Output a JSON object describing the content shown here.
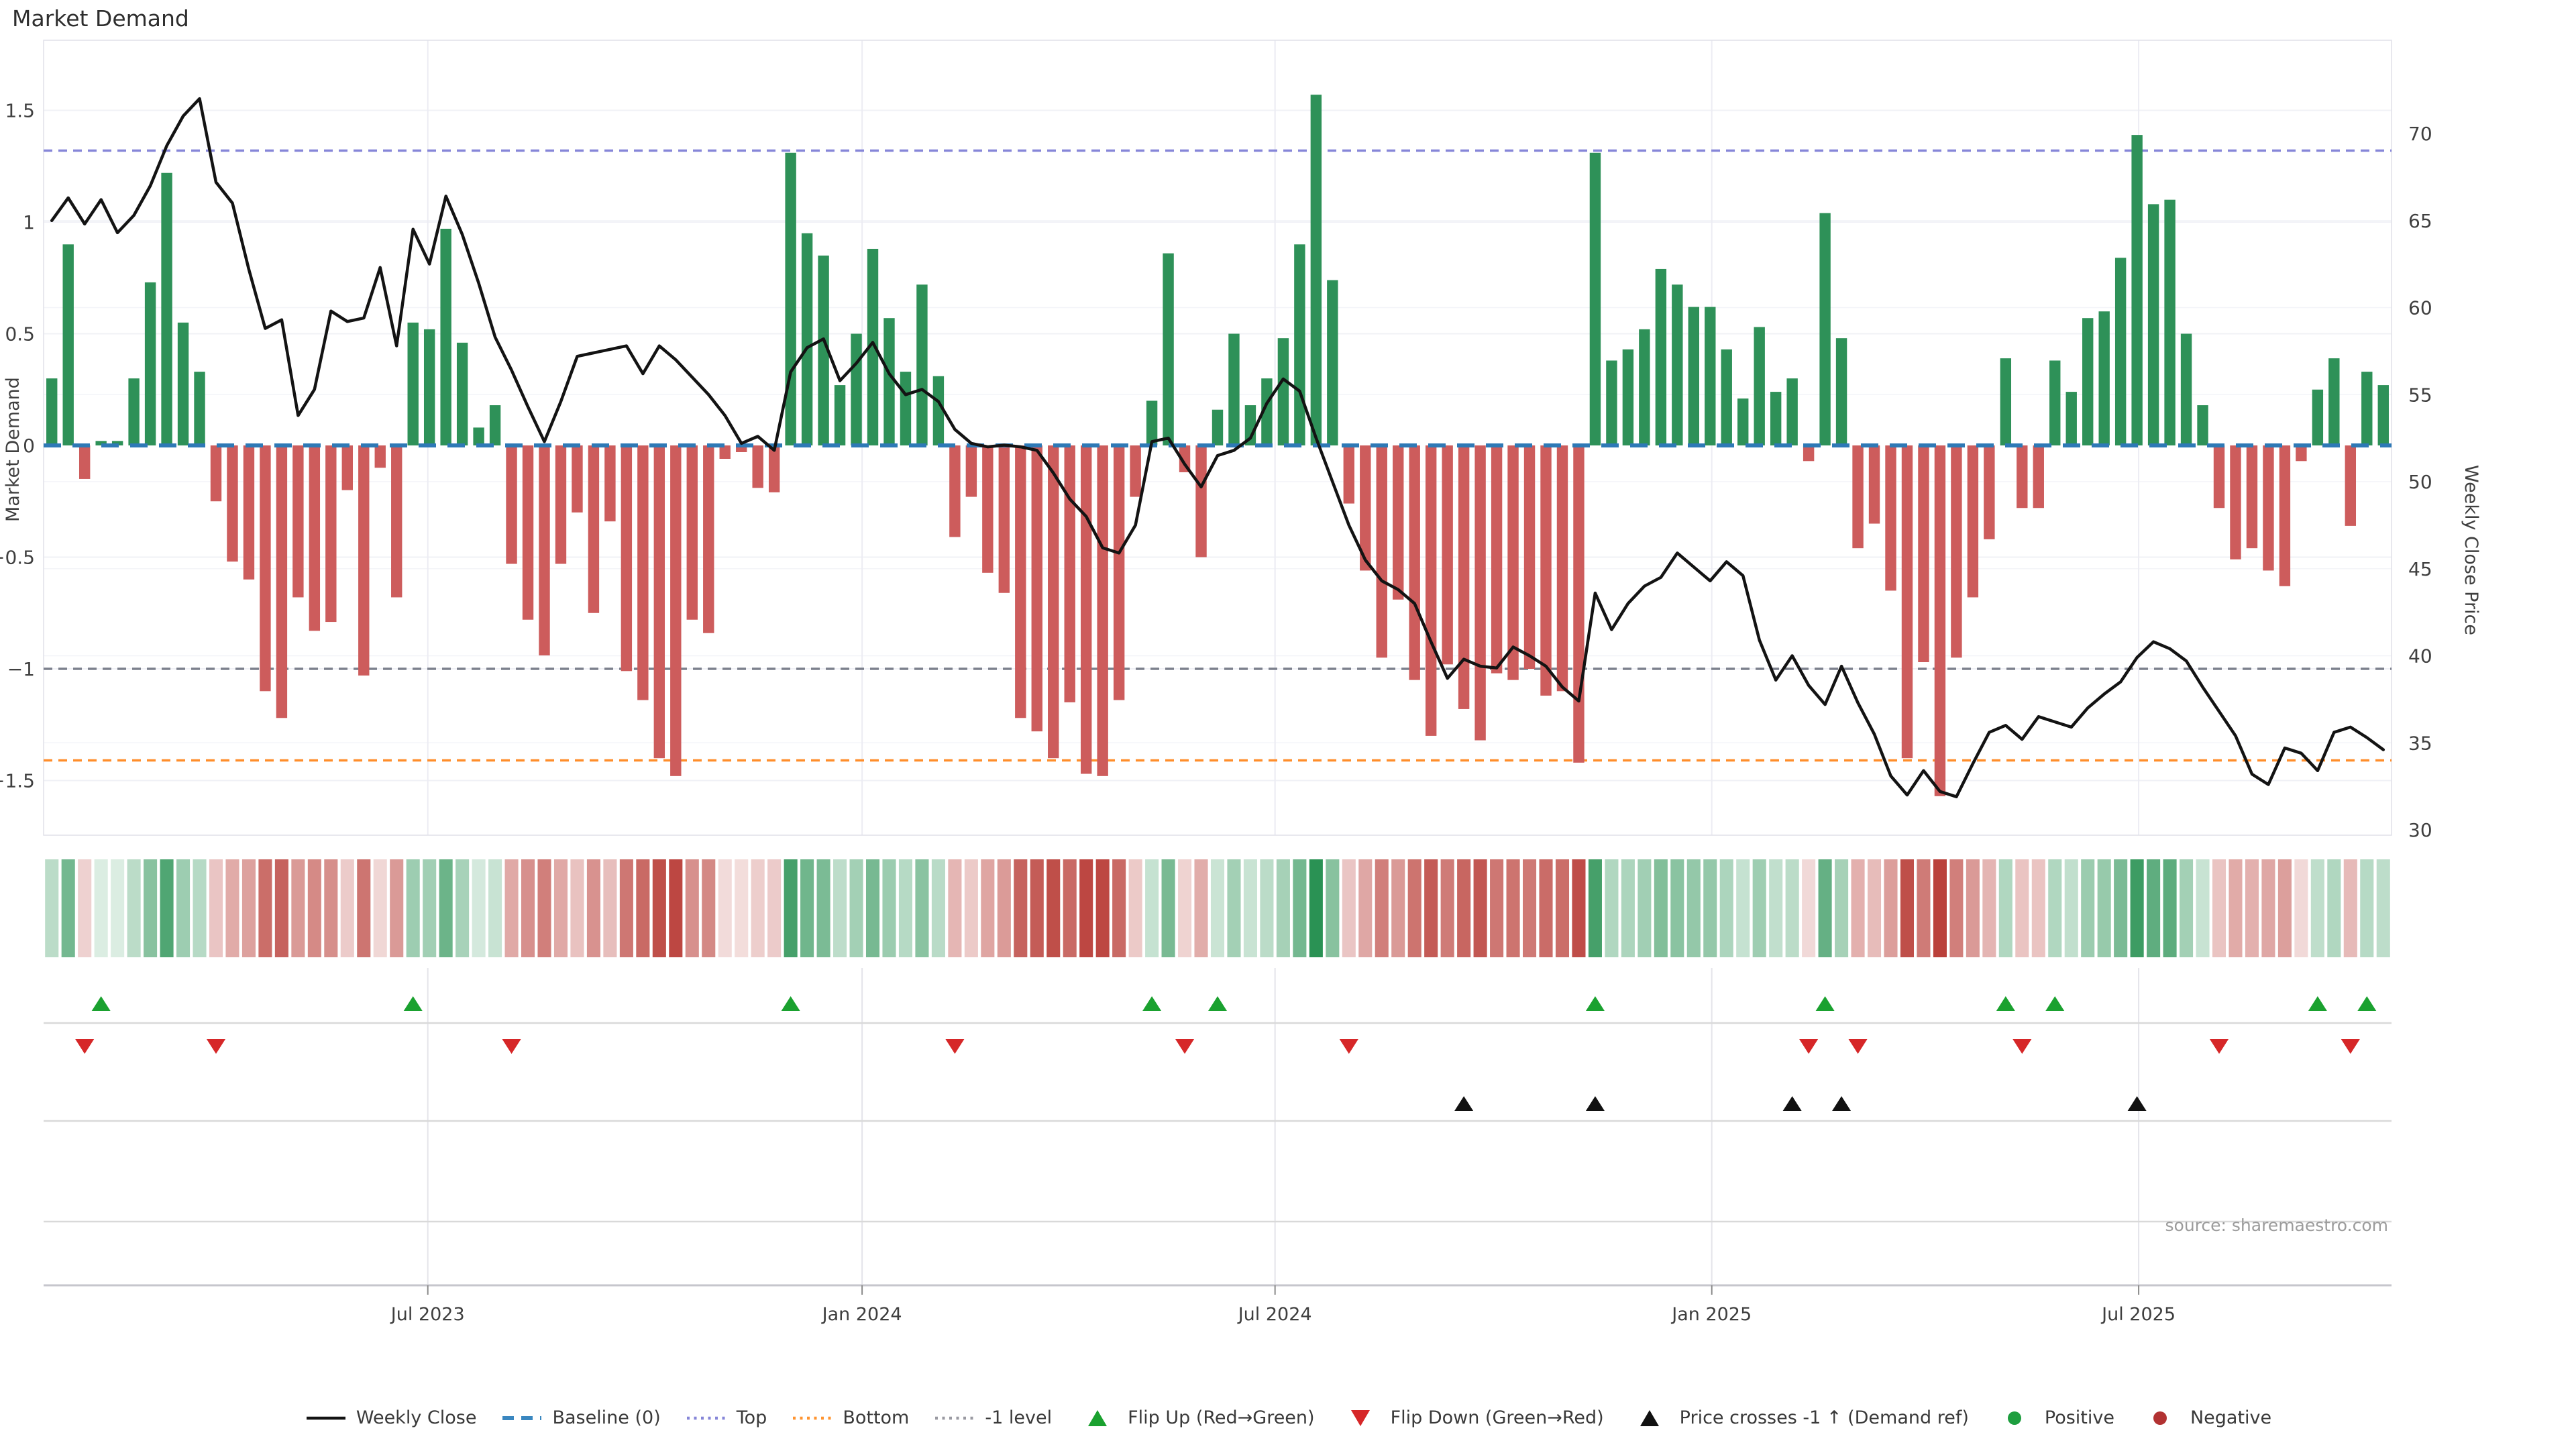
{
  "title": "Market Demand",
  "source": "source: sharemaestro.com",
  "legend": {
    "items": [
      {
        "glyph": "line",
        "color": "#131313",
        "label": "Weekly Close"
      },
      {
        "glyph": "dashes",
        "color": "#3a87c0",
        "label": "Baseline (0)"
      },
      {
        "glyph": "dots",
        "color": "#8686d8",
        "label": "Top"
      },
      {
        "glyph": "dots",
        "color": "#ff9430",
        "label": "Bottom"
      },
      {
        "glyph": "dots",
        "color": "#9a9aa2",
        "label": "-1 level"
      },
      {
        "glyph": "tri-up",
        "color": "#1aa12f",
        "label": "Flip Up (Red→Green)"
      },
      {
        "glyph": "tri-down",
        "color": "#d62728",
        "label": "Flip Down (Green→Red)"
      },
      {
        "glyph": "tri-up",
        "color": "#111111",
        "label": "Price crosses -1 ↑ (Demand ref)"
      },
      {
        "glyph": "dot",
        "color": "#1e9e3f",
        "label": "Positive"
      },
      {
        "glyph": "dot",
        "color": "#b23232",
        "label": "Negative"
      }
    ]
  },
  "chart_data": {
    "type": "combo",
    "title": "Market Demand",
    "x_axis": {
      "ticks": [
        {
          "label": "Jul 2023",
          "week": 22.9
        },
        {
          "label": "Jan 2024",
          "week": 49.35
        },
        {
          "label": "Jul 2024",
          "week": 74.5
        },
        {
          "label": "Jan 2025",
          "week": 101.1
        },
        {
          "label": "Jul 2025",
          "week": 127.1
        }
      ]
    },
    "y_left": {
      "label": "Market Demand",
      "ticks": [
        1.5,
        1,
        0.5,
        0,
        -0.5,
        -1,
        -1.5
      ],
      "range": [
        -1.75,
        1.81
      ]
    },
    "y_right": {
      "label": "Weekly Close Price",
      "ticks": [
        70,
        65,
        60,
        55,
        50,
        45,
        40,
        35,
        30
      ],
      "range": [
        29.5,
        75.4
      ]
    },
    "series": [
      {
        "name": "Market Demand",
        "type": "bar",
        "color_positive": "#2e9158",
        "color_negative": "#cd5c5c",
        "values": [
          0.3,
          0.9,
          -0.15,
          0.02,
          0.02,
          0.3,
          0.73,
          1.22,
          0.55,
          0.33,
          -0.25,
          -0.52,
          -0.6,
          -1.1,
          -1.22,
          -0.68,
          -0.83,
          -0.79,
          -0.2,
          -1.03,
          -0.1,
          -0.68,
          0.55,
          0.52,
          0.97,
          0.46,
          0.08,
          0.18,
          -0.53,
          -0.78,
          -0.94,
          -0.53,
          -0.3,
          -0.75,
          -0.34,
          -1.01,
          -1.14,
          -1.4,
          -1.48,
          -0.78,
          -0.84,
          -0.06,
          -0.03,
          -0.19,
          -0.21,
          1.31,
          0.95,
          0.85,
          0.27,
          0.5,
          0.88,
          0.57,
          0.33,
          0.72,
          0.31,
          -0.41,
          -0.23,
          -0.57,
          -0.66,
          -1.22,
          -1.28,
          -1.4,
          -1.15,
          -1.47,
          -1.48,
          -1.14,
          -0.23,
          0.2,
          0.86,
          -0.12,
          -0.5,
          0.16,
          0.5,
          0.18,
          0.3,
          0.48,
          0.9,
          1.57,
          0.74,
          -0.26,
          -0.56,
          -0.95,
          -0.69,
          -1.05,
          -1.3,
          -0.98,
          -1.18,
          -1.32,
          -1.02,
          -1.05,
          -1.0,
          -1.12,
          -1.1,
          -1.42,
          1.31,
          0.38,
          0.43,
          0.52,
          0.79,
          0.72,
          0.62,
          0.62,
          0.43,
          0.21,
          0.53,
          0.24,
          0.3,
          -0.07,
          1.04,
          0.48,
          -0.46,
          -0.35,
          -0.65,
          -1.4,
          -0.97,
          -1.57,
          -0.95,
          -0.68,
          -0.42,
          0.39,
          -0.28,
          -0.28,
          0.38,
          0.24,
          0.57,
          0.6,
          0.84,
          1.39,
          1.08,
          1.1,
          0.5,
          0.18,
          -0.28,
          -0.51,
          -0.46,
          -0.56,
          -0.63,
          -0.07,
          0.25,
          0.39,
          -0.36,
          0.33,
          0.27
        ]
      },
      {
        "name": "Weekly Close",
        "type": "line",
        "color": "#131313",
        "values": [
          65.0,
          66.3,
          64.8,
          66.2,
          64.3,
          65.3,
          67.0,
          69.3,
          71.0,
          72.0,
          67.2,
          66.0,
          62.2,
          58.8,
          59.3,
          53.8,
          55.3,
          59.8,
          59.2,
          59.4,
          62.3,
          57.8,
          64.5,
          62.5,
          66.4,
          64.2,
          61.4,
          58.3,
          56.4,
          54.3,
          52.3,
          54.6,
          57.2,
          57.4,
          57.6,
          57.8,
          56.2,
          57.8,
          57.0,
          56.0,
          55.0,
          53.8,
          52.2,
          52.6,
          51.8,
          56.3,
          57.7,
          58.2,
          55.8,
          56.8,
          58.0,
          56.2,
          55.0,
          55.3,
          54.6,
          53.0,
          52.2,
          52.0,
          52.1,
          52.0,
          51.8,
          50.5,
          49.0,
          48.0,
          46.2,
          45.9,
          47.5,
          52.3,
          52.5,
          51.0,
          49.7,
          51.5,
          51.8,
          52.5,
          54.5,
          55.9,
          55.2,
          52.5,
          50.0,
          47.5,
          45.5,
          44.3,
          43.8,
          43.0,
          40.8,
          38.7,
          39.8,
          39.4,
          39.3,
          40.5,
          40.0,
          39.4,
          38.2,
          37.4,
          43.6,
          41.5,
          43.0,
          44.0,
          44.5,
          45.9,
          45.1,
          44.3,
          45.4,
          44.6,
          40.9,
          38.6,
          40.0,
          38.3,
          37.2,
          39.4,
          37.3,
          35.5,
          33.1,
          32.0,
          33.4,
          32.2,
          31.9,
          33.8,
          35.6,
          36.0,
          35.2,
          36.5,
          36.2,
          35.9,
          37.0,
          37.8,
          38.5,
          39.9,
          40.8,
          40.4,
          39.7,
          38.2,
          36.8,
          35.4,
          33.2,
          32.6,
          34.7,
          34.4,
          33.4,
          35.6,
          35.9,
          35.3,
          34.6
        ]
      }
    ],
    "reference_lines": [
      {
        "name": "Baseline (0)",
        "axis": "demand",
        "value": 0,
        "color": "#2e79b6",
        "style": "dashed-bold"
      },
      {
        "name": "Top",
        "axis": "demand",
        "value": 1.32,
        "color": "#8686d8",
        "style": "dashed"
      },
      {
        "name": "Bottom",
        "axis": "demand",
        "value": -1.41,
        "color": "#ff8e2b",
        "style": "dashed"
      },
      {
        "name": "-1 level",
        "axis": "demand",
        "value": -1.0,
        "color": "#7d818d",
        "style": "dashed"
      }
    ],
    "markers": {
      "flip_up_rule": "week where demand turns negative→positive",
      "flip_down_rule": "week where demand turns positive→negative",
      "flip_up_color": "#1aa12f",
      "flip_down_color": "#d62728",
      "price_cross_up_weeks": [
        86,
        94,
        106,
        109,
        127
      ],
      "price_cross_color": "#111111"
    },
    "heatmap": {
      "derived_from": "demand bar values",
      "positive_base": "#2a9254",
      "negative_base": "#ba403a"
    },
    "legend_position": "bottom-center",
    "grid": true
  }
}
